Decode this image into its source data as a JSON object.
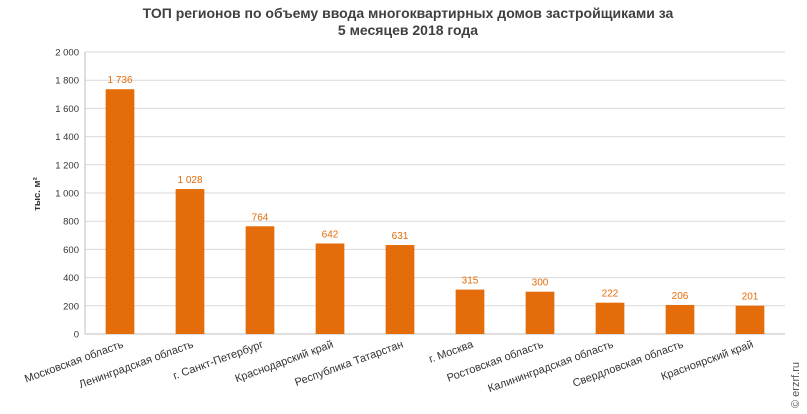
{
  "chart_data": {
    "type": "bar",
    "title_lines": [
      "ТОП регионов по объему ввода многоквартирных домов застройщиками за",
      "5 месяцев 2018 года"
    ],
    "ylabel": "тыс. м²",
    "xlabel": "",
    "ylim": [
      0,
      2000
    ],
    "yticks": [
      0,
      200,
      400,
      600,
      800,
      1000,
      1200,
      1400,
      1600,
      1800,
      2000
    ],
    "ytick_labels": [
      "0",
      "200",
      "400",
      "600",
      "800",
      "1 000",
      "1 200",
      "1 400",
      "1 600",
      "1 800",
      "2 000"
    ],
    "categories": [
      "Московская область",
      "Ленинградская область",
      "г. Санкт-Петербург",
      "Краснодарский край",
      "Республика Татарстан",
      "г. Москва",
      "Ростовская область",
      "Калининградская область",
      "Свердловская область",
      "Красноярский край"
    ],
    "values": [
      1736,
      1028,
      764,
      642,
      631,
      315,
      300,
      222,
      206,
      201
    ],
    "value_labels": [
      "1 736",
      "1 028",
      "764",
      "642",
      "631",
      "315",
      "300",
      "222",
      "206",
      "201"
    ],
    "bar_color": "#e46c0a",
    "grid": true,
    "legend": "none"
  },
  "watermark": "© erzrf.ru"
}
